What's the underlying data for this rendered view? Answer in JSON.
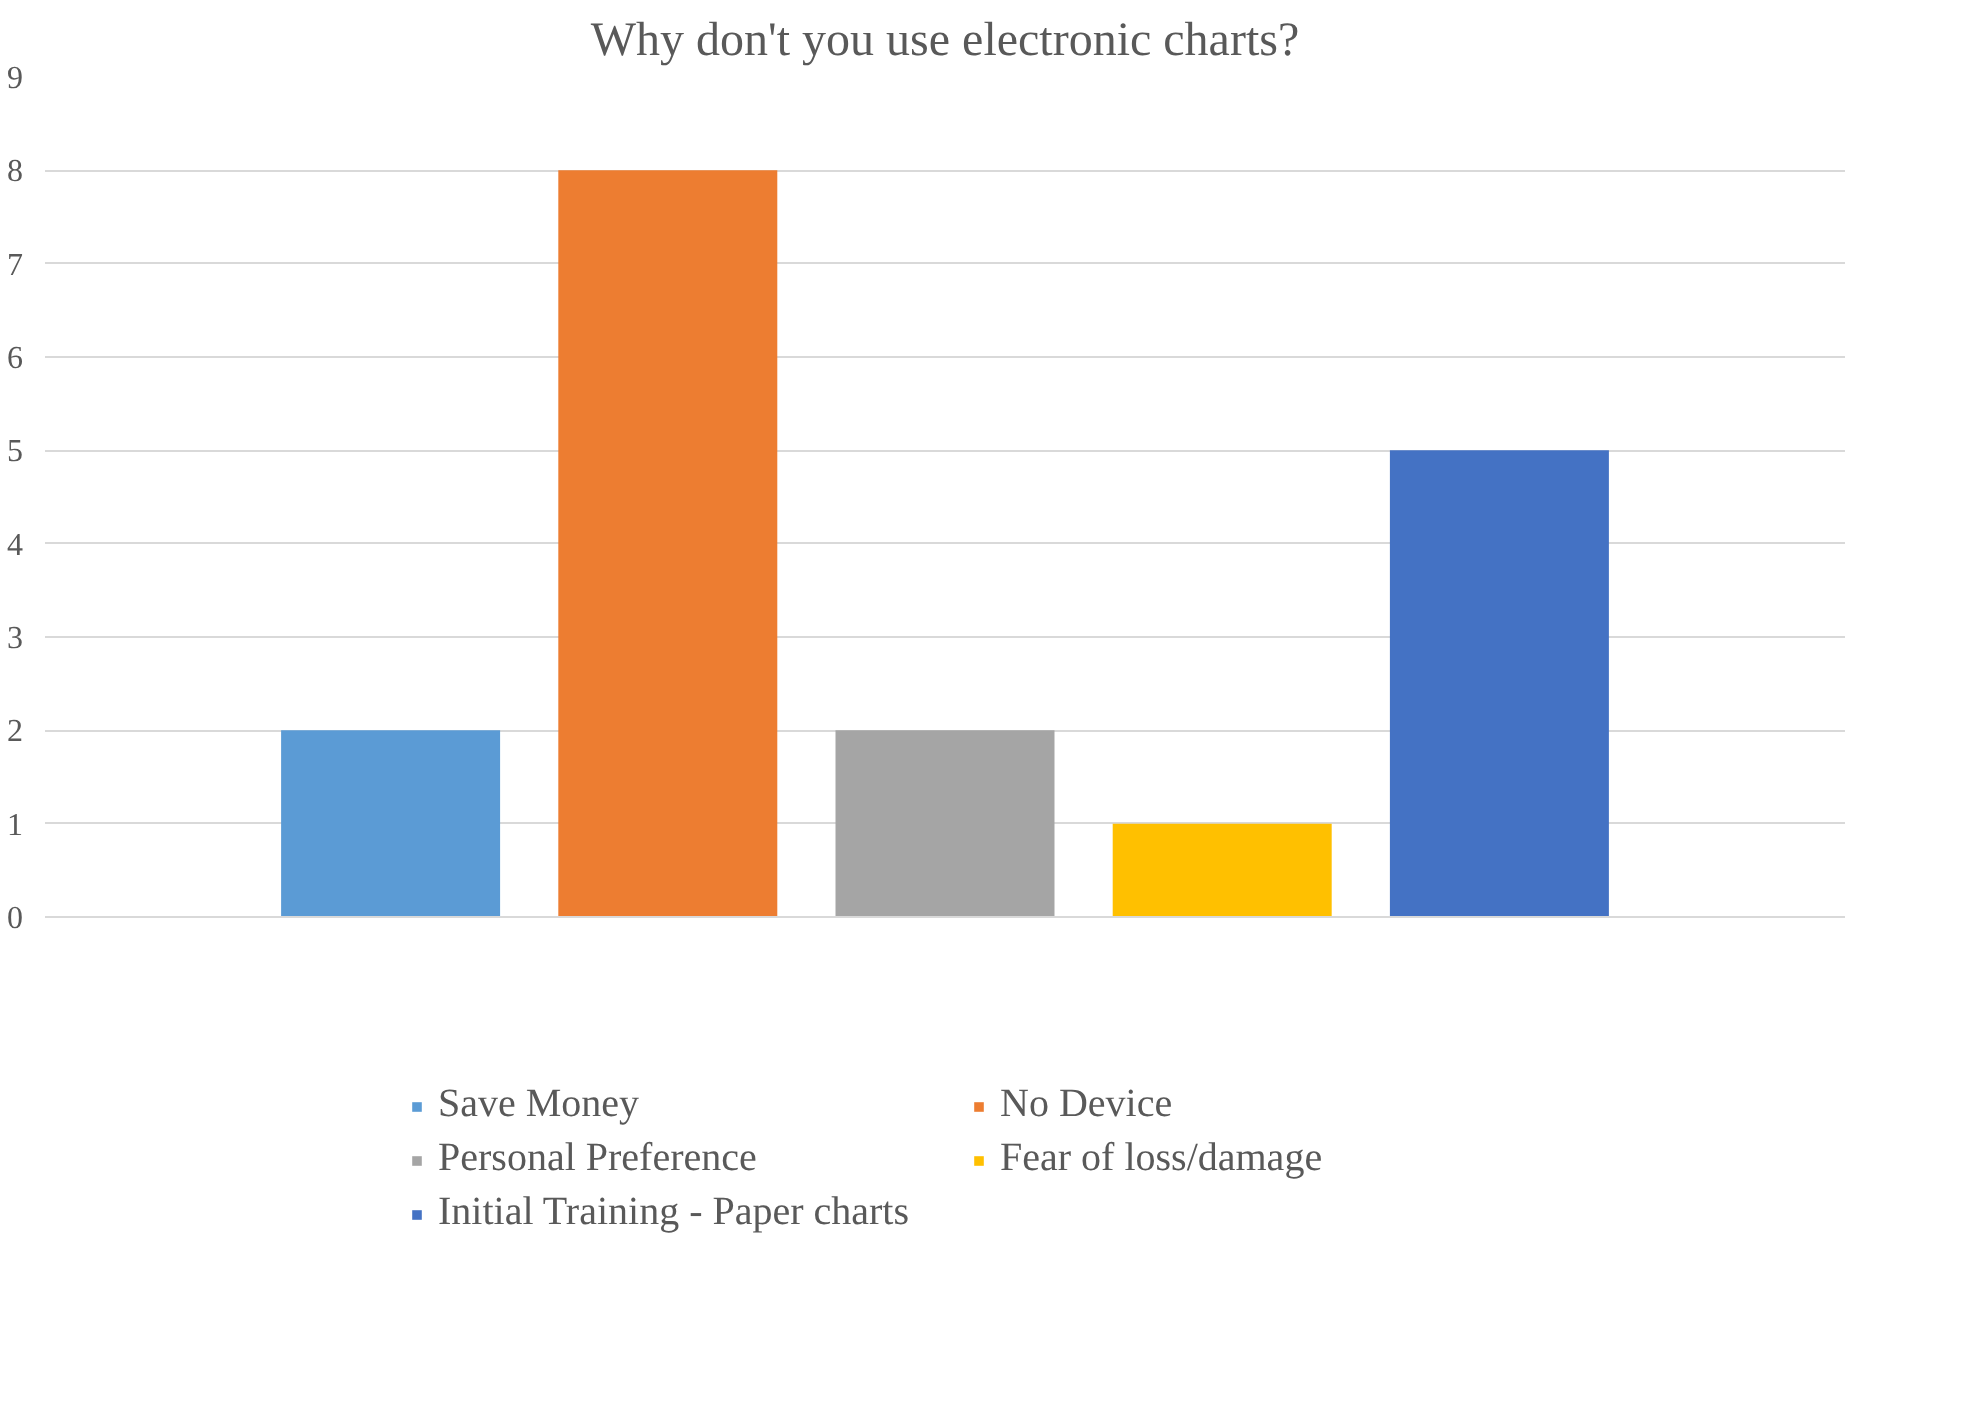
{
  "chart_data": {
    "type": "bar",
    "title": "Why don't you use electronic charts?",
    "categories": [
      null
    ],
    "series": [
      {
        "name": "Save Money",
        "color": "#5b9bd5",
        "values": [
          2
        ]
      },
      {
        "name": "No Device",
        "color": "#ed7d31",
        "values": [
          8
        ]
      },
      {
        "name": "Personal Preference",
        "color": "#a5a5a5",
        "values": [
          2
        ]
      },
      {
        "name": "Fear of loss/damage",
        "color": "#ffc000",
        "values": [
          1
        ]
      },
      {
        "name": "Initial Training - Paper charts",
        "color": "#4472c4",
        "values": [
          5
        ]
      }
    ],
    "ylim": [
      0,
      9
    ],
    "yticks": [
      0,
      1,
      2,
      3,
      4,
      5,
      6,
      7,
      8,
      9
    ],
    "grid": "y",
    "legend": "bottom"
  }
}
